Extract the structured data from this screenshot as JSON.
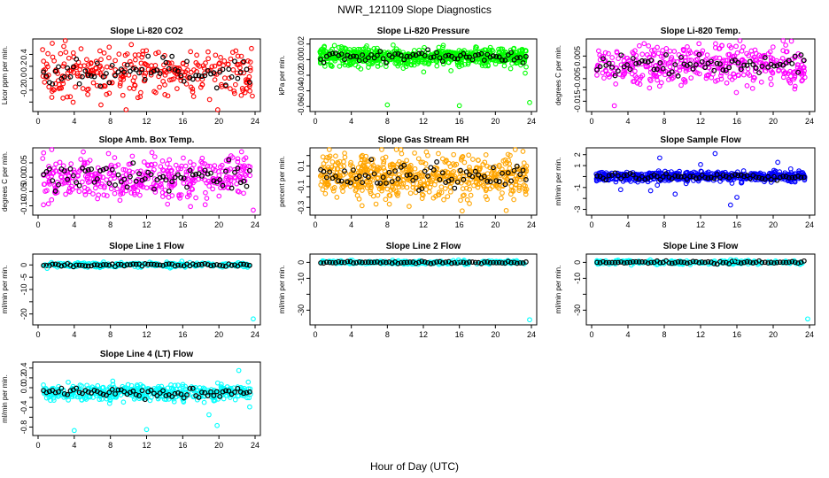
{
  "page": {
    "title": "NWR_121109  Slope Diagnostics",
    "xlabel": "Hour of Day (UTC)"
  },
  "chart_data": [
    {
      "type": "scatter",
      "id": "co2",
      "title": "Slope Li-820 CO2",
      "ylabel": "Licor ppm per min.",
      "xlim": [
        0,
        24
      ],
      "xticks": [
        0,
        4,
        8,
        12,
        16,
        20,
        24
      ],
      "ylim": [
        -0.5,
        0.6
      ],
      "yticks": [
        -0.4,
        -0.2,
        0.0,
        0.2,
        0.4
      ],
      "ytick_labels": [
        "",
        "-0.2",
        "0.0",
        "0.2",
        "0.4"
      ],
      "color": "#ff0000",
      "center": 0.1,
      "spread": 0.2,
      "n_points": 300,
      "outliers": [
        [
          0.5,
          0.48
        ],
        [
          23.6,
          0.5
        ],
        [
          23.7,
          -0.3
        ]
      ]
    },
    {
      "type": "scatter",
      "id": "pressure",
      "title": "Slope Li-820 Pressure",
      "ylabel": "kPa per min.",
      "xlim": [
        0,
        24
      ],
      "xticks": [
        0,
        4,
        8,
        12,
        16,
        20,
        24
      ],
      "ylim": [
        -0.062,
        0.022
      ],
      "yticks": [
        -0.06,
        -0.04,
        -0.02,
        0.0,
        0.02
      ],
      "ytick_labels": [
        "-0.06",
        "-0.04",
        "-0.02",
        "0.00",
        "0.02"
      ],
      "color": "#00ff00",
      "center": 0.004,
      "spread": 0.006,
      "n_points": 650,
      "outliers": [
        [
          8.0,
          -0.058
        ],
        [
          16.0,
          -0.059
        ],
        [
          23.8,
          -0.055
        ],
        [
          1.0,
          0.017
        ]
      ]
    },
    {
      "type": "scatter",
      "id": "temp",
      "title": "Slope Li-820 Temp.",
      "ylabel": "degrees C per min.",
      "xlim": [
        0,
        24
      ],
      "xticks": [
        0,
        4,
        8,
        12,
        16,
        20,
        24
      ],
      "ylim": [
        -0.018,
        0.011
      ],
      "yticks": [
        -0.015,
        -0.01,
        -0.005,
        0.0,
        0.005
      ],
      "ytick_labels": [
        "-0.015",
        "-0.005",
        "0.005"
      ],
      "ytick_label_values": [
        -0.015,
        -0.005,
        0.005
      ],
      "color": "#ff00ff",
      "center": 0.001,
      "spread": 0.0045,
      "n_points": 400,
      "outliers": [
        [
          2.5,
          -0.017
        ]
      ]
    },
    {
      "type": "scatter",
      "id": "amb",
      "title": "Slope Amb. Box Temp.",
      "ylabel": "degrees C per min.",
      "xlim": [
        0,
        24
      ],
      "xticks": [
        0,
        4,
        8,
        12,
        16,
        20,
        24
      ],
      "ylim": [
        -0.12,
        0.09
      ],
      "yticks": [
        -0.1,
        -0.05,
        0.0,
        0.05
      ],
      "ytick_labels": [
        "-0.10",
        "-0.05",
        "0.00",
        "0.05"
      ],
      "color": "#ff00ff",
      "center": 0.0,
      "spread": 0.04,
      "n_points": 400,
      "outliers": [
        [
          23.8,
          -0.115
        ]
      ]
    },
    {
      "type": "scatter",
      "id": "rh",
      "title": "Slope Gas Stream RH",
      "ylabel": "percent per min.",
      "xlim": [
        0,
        24
      ],
      "xticks": [
        0,
        4,
        8,
        12,
        16,
        20,
        24
      ],
      "ylim": [
        -0.34,
        0.24
      ],
      "yticks": [
        -0.3,
        -0.2,
        -0.1,
        0.0,
        0.1,
        0.2
      ],
      "ytick_labels": [
        "-0.3",
        "-0.1",
        "0.1"
      ],
      "ytick_label_values": [
        -0.3,
        -0.1,
        0.1
      ],
      "color": "#ffa500",
      "center": 0.0,
      "spread": 0.1,
      "n_points": 600,
      "outliers": [
        [
          21.2,
          -0.33
        ]
      ]
    },
    {
      "type": "scatter",
      "id": "sample",
      "title": "Slope Sample Flow",
      "ylabel": "ml/min per min.",
      "xlim": [
        0,
        24
      ],
      "xticks": [
        0,
        4,
        8,
        12,
        16,
        20,
        24
      ],
      "ylim": [
        -3.2,
        2.3
      ],
      "yticks": [
        -3,
        -2,
        -1,
        0,
        1,
        2
      ],
      "ytick_labels": [
        "-3",
        "-1",
        "1",
        "2"
      ],
      "ytick_label_values": [
        -3,
        -1,
        1,
        2
      ],
      "color": "#0000ff",
      "center": 0.0,
      "spread": 0.22,
      "n_points": 550,
      "outliers": [
        [
          15.3,
          -2.6
        ],
        [
          13.6,
          2.1
        ],
        [
          7.5,
          1.7
        ],
        [
          9.2,
          -1.6
        ],
        [
          16.0,
          -1.9
        ],
        [
          12.0,
          1.1
        ],
        [
          20.5,
          1.3
        ],
        [
          3.2,
          -1.2
        ],
        [
          6.5,
          -1.3
        ]
      ]
    },
    {
      "type": "scatter",
      "id": "line1",
      "title": "Slope Line 1 Flow",
      "ylabel": "ml/min per min.",
      "xlim": [
        0,
        24
      ],
      "xticks": [
        0,
        4,
        8,
        12,
        16,
        20,
        24
      ],
      "ylim": [
        -23,
        3
      ],
      "yticks": [
        -20,
        -15,
        -10,
        -5,
        0
      ],
      "ytick_labels": [
        "-20",
        "-10",
        "-5",
        "0"
      ],
      "ytick_label_values": [
        -20,
        -10,
        -5,
        0
      ],
      "color": "#00ffff",
      "center": 0.0,
      "spread": 0.5,
      "n_points": 230,
      "outliers": [
        [
          23.8,
          -22
        ],
        [
          15.9,
          1.5
        ],
        [
          1.0,
          -1.4
        ]
      ]
    },
    {
      "type": "scatter",
      "id": "line2",
      "title": "Slope Line 2 Flow",
      "ylabel": "ml/min per min.",
      "xlim": [
        0,
        24
      ],
      "xticks": [
        0,
        4,
        8,
        12,
        16,
        20,
        24
      ],
      "ylim": [
        -37,
        3
      ],
      "yticks": [
        -30,
        -20,
        -10,
        0
      ],
      "ytick_labels": [
        "-30",
        "-10",
        "0"
      ],
      "ytick_label_values": [
        -30,
        -10,
        0
      ],
      "color": "#00ffff",
      "center": 0.0,
      "spread": 0.6,
      "n_points": 230,
      "outliers": [
        [
          23.8,
          -36
        ],
        [
          15.9,
          1.5
        ]
      ]
    },
    {
      "type": "scatter",
      "id": "line3",
      "title": "Slope Line 3 Flow",
      "ylabel": "ml/min per min.",
      "xlim": [
        0,
        24
      ],
      "xticks": [
        0,
        4,
        8,
        12,
        16,
        20,
        24
      ],
      "ylim": [
        -37,
        3
      ],
      "yticks": [
        -30,
        -20,
        -10,
        0
      ],
      "ytick_labels": [
        "-30",
        "-10",
        "0"
      ],
      "ytick_label_values": [
        -30,
        -10,
        0
      ],
      "color": "#00ffff",
      "center": 0.0,
      "spread": 0.6,
      "n_points": 230,
      "outliers": [
        [
          23.8,
          -35.5
        ],
        [
          15.9,
          1.5
        ]
      ]
    },
    {
      "type": "scatter",
      "id": "line4",
      "title": "Slope Line 4 (LT) Flow",
      "ylabel": "ml/min per min.",
      "xlim": [
        0,
        24
      ],
      "xticks": [
        0,
        4,
        8,
        12,
        16,
        20,
        24
      ],
      "ylim": [
        -0.9,
        0.45
      ],
      "yticks": [
        -0.8,
        -0.6,
        -0.4,
        -0.2,
        0.0,
        0.2,
        0.4
      ],
      "ytick_labels": [
        "-0.8",
        "-0.4",
        "0.0",
        "0.2",
        "0.4"
      ],
      "ytick_label_values": [
        -0.8,
        -0.4,
        0.0,
        0.2,
        0.4
      ],
      "color": "#00ffff",
      "center": -0.1,
      "spread": 0.08,
      "n_points": 430,
      "outliers": [
        [
          4.0,
          -0.87
        ],
        [
          12.0,
          -0.85
        ],
        [
          19.8,
          -0.77
        ],
        [
          22.2,
          0.35
        ],
        [
          18.9,
          -0.55
        ]
      ]
    }
  ]
}
